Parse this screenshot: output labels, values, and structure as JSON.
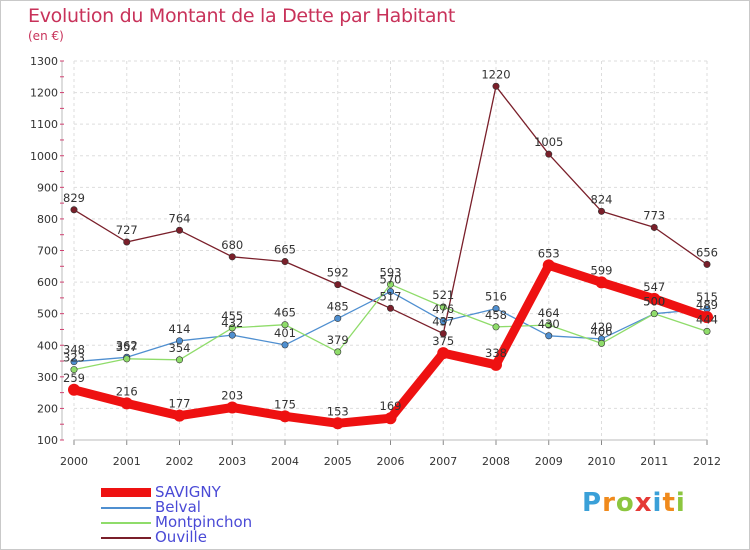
{
  "title": "Evolution du Montant de la Dette par Habitant",
  "subtitle": "(en €)",
  "logo": {
    "letters": [
      {
        "ch": "P",
        "color": "#3aa0d8"
      },
      {
        "ch": "r",
        "color": "#f08a1c"
      },
      {
        "ch": "o",
        "color": "#8cc63f"
      },
      {
        "ch": "x",
        "color": "#e53935"
      },
      {
        "ch": "i",
        "color": "#3aa0d8"
      },
      {
        "ch": "t",
        "color": "#f08a1c"
      },
      {
        "ch": "i",
        "color": "#8cc63f"
      }
    ]
  },
  "chart_data": {
    "type": "line",
    "x": [
      "2000",
      "2001",
      "2002",
      "2003",
      "2004",
      "2005",
      "2006",
      "2007",
      "2008",
      "2009",
      "2010",
      "2011",
      "2012"
    ],
    "ylim": [
      100,
      1300
    ],
    "yticks": [
      100,
      200,
      300,
      400,
      500,
      600,
      700,
      800,
      900,
      1000,
      1100,
      1200,
      1300
    ],
    "grid": true,
    "legend_position": "bottom-left",
    "series": [
      {
        "name": "Ouville",
        "color": "#7a1f2a",
        "values": [
          829,
          727,
          764,
          680,
          665,
          592,
          517,
          437,
          1220,
          1005,
          824,
          773,
          656
        ]
      },
      {
        "name": "Belval",
        "color": "#4f8fd0",
        "values": [
          348,
          362,
          414,
          432,
          401,
          485,
          570,
          476,
          516,
          430,
          420,
          500,
          515
        ]
      },
      {
        "name": "Montpinchon",
        "color": "#8fdc6a",
        "values": [
          323,
          357,
          354,
          455,
          465,
          379,
          593,
          521,
          458,
          464,
          406,
          500,
          444
        ]
      },
      {
        "name": "SAVIGNY",
        "color": "#ee1111",
        "values": [
          259,
          216,
          177,
          203,
          175,
          153,
          169,
          375,
          338,
          653,
          599,
          547,
          489
        ]
      }
    ],
    "data_labels": [
      {
        "series": "Ouville",
        "labels": [
          "829",
          "727",
          "764",
          "680",
          "665",
          "592",
          "517",
          "437",
          "1220",
          "1005",
          "824",
          "773",
          "656"
        ]
      },
      {
        "series": "Belval",
        "labels": [
          "348",
          "362",
          "414",
          "432",
          "401",
          "485",
          "570",
          "476",
          "516",
          "430",
          "420",
          "500",
          "515"
        ]
      },
      {
        "series": "Montpinchon",
        "labels": [
          "323",
          "357",
          "354",
          "455",
          "465",
          "379",
          "593",
          "521",
          "458",
          "464",
          "406",
          "500",
          "444"
        ]
      },
      {
        "series": "SAVIGNY",
        "labels": [
          "259",
          "216",
          "177",
          "203",
          "175",
          "153",
          "169",
          "375",
          "338",
          "653",
          "599",
          "547",
          "489"
        ]
      }
    ]
  },
  "legend": [
    {
      "label": "SAVIGNY",
      "color": "#ee1111"
    },
    {
      "label": "Belval",
      "color": "#4f8fd0"
    },
    {
      "label": "Montpinchon",
      "color": "#8fdc6a"
    },
    {
      "label": "Ouville",
      "color": "#7a1f2a"
    }
  ]
}
